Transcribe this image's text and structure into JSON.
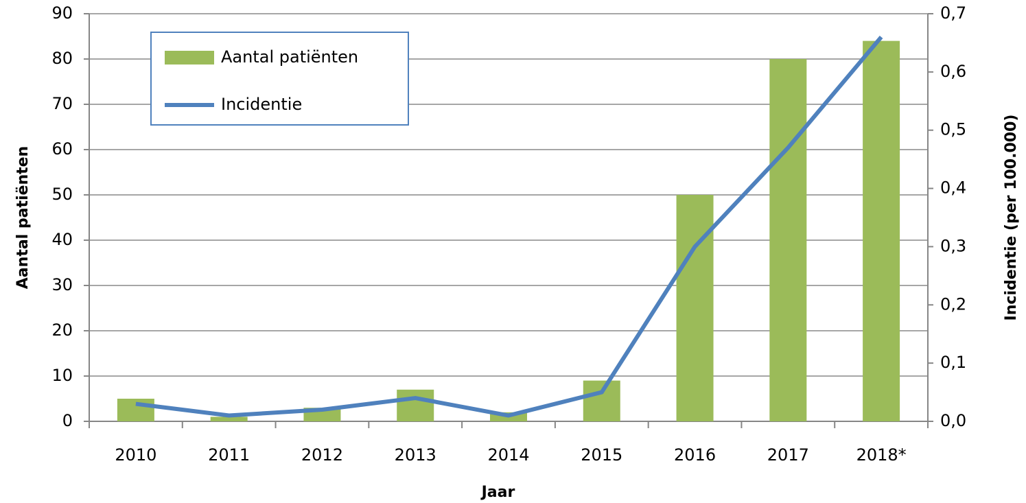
{
  "chart_data": {
    "type": "bar-line",
    "categories": [
      "2010",
      "2011",
      "2012",
      "2013",
      "2014",
      "2015",
      "2016",
      "2017",
      "2018*"
    ],
    "series": [
      {
        "name": "Aantal patiënten",
        "type": "bar",
        "color": "#9bbb59",
        "values": [
          5,
          1,
          3,
          7,
          2,
          9,
          50,
          80,
          84
        ]
      },
      {
        "name": "Incidentie",
        "type": "line",
        "axis": "y2",
        "color": "#4f81bd",
        "values": [
          0.03,
          0.01,
          0.02,
          0.04,
          0.01,
          0.05,
          0.3,
          0.47,
          0.66
        ]
      }
    ],
    "x_label": "Jaar",
    "y_label": "Aantal patiënten",
    "y2_label": "Incidentie  (per 100.000)",
    "ylim": [
      0,
      90
    ],
    "yticks": [
      0,
      10,
      20,
      30,
      40,
      50,
      60,
      70,
      80,
      90
    ],
    "y2lim": [
      0,
      0.7
    ],
    "y2ticks": [
      {
        "value": 0,
        "label": "0,0"
      },
      {
        "value": 0.1,
        "label": "0,1"
      },
      {
        "value": 0.2,
        "label": "0,2"
      },
      {
        "value": 0.3,
        "label": "0,3"
      },
      {
        "value": 0.4,
        "label": "0,4"
      },
      {
        "value": 0.5,
        "label": "0,5"
      },
      {
        "value": 0.6,
        "label": "0,6"
      },
      {
        "value": 0.7,
        "label": "0,7"
      }
    ],
    "grid": true,
    "legend": "upper left"
  }
}
